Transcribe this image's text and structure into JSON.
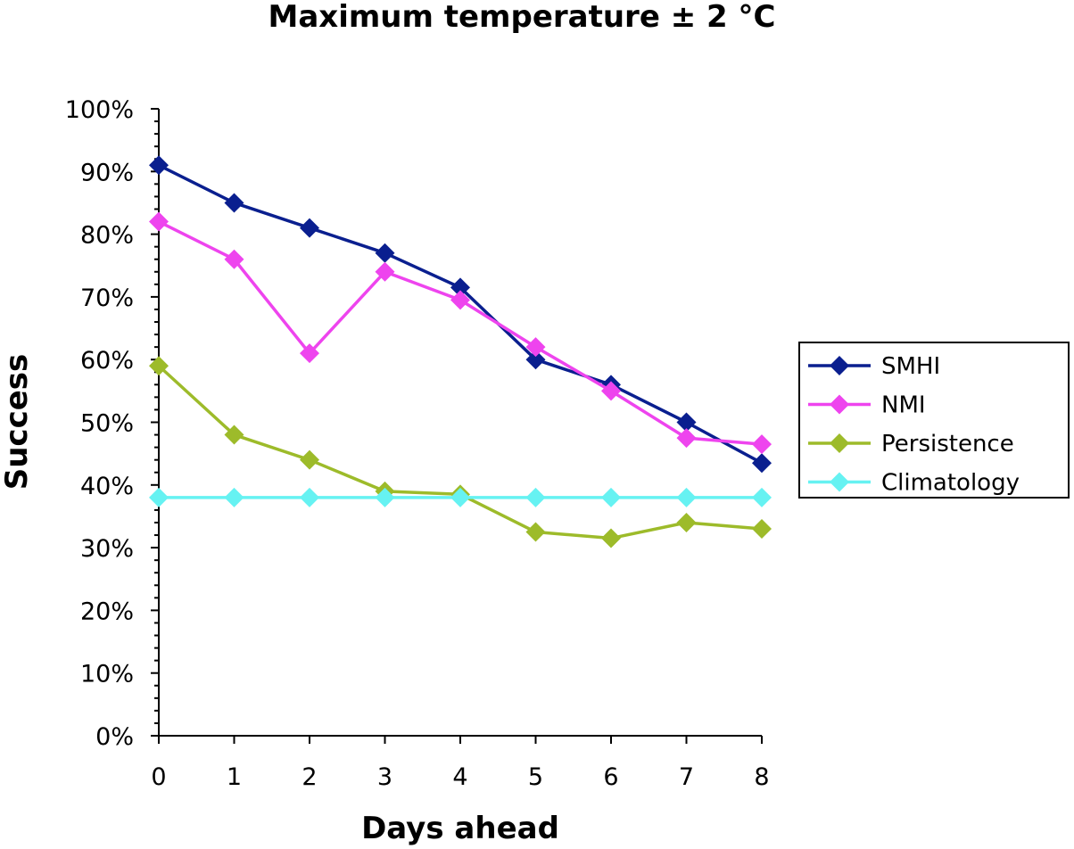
{
  "chart_data": {
    "type": "line",
    "title": "Maximum temperature ± 2 °C",
    "xlabel": "Days ahead",
    "ylabel": "Success",
    "x": [
      0,
      1,
      2,
      3,
      4,
      5,
      6,
      7,
      8
    ],
    "x_tick_labels": [
      "0",
      "1",
      "2",
      "3",
      "4",
      "5",
      "6",
      "7",
      "8"
    ],
    "y_tick_labels": [
      "0%",
      "10%",
      "20%",
      "30%",
      "40%",
      "50%",
      "60%",
      "70%",
      "80%",
      "90%",
      "100%"
    ],
    "ylim": [
      0,
      100
    ],
    "y_unit": "percent",
    "grid": false,
    "legend_position": "right",
    "marker": "diamond",
    "series": [
      {
        "name": "SMHI",
        "color": "#0A1F8F",
        "values": [
          91,
          85,
          81,
          77,
          71.5,
          60,
          56,
          50,
          43.5
        ]
      },
      {
        "name": "NMI",
        "color": "#EE44EE",
        "values": [
          82,
          76,
          61,
          74,
          69.5,
          62,
          55,
          47.5,
          46.5
        ]
      },
      {
        "name": "Persistence",
        "color": "#9DBB2A",
        "values": [
          59,
          48,
          44,
          39,
          38.5,
          32.5,
          31.5,
          34,
          33
        ]
      },
      {
        "name": "Climatology",
        "color": "#66F2F2",
        "values": [
          38,
          38,
          38,
          38,
          38,
          38,
          38,
          38,
          38
        ]
      }
    ]
  }
}
